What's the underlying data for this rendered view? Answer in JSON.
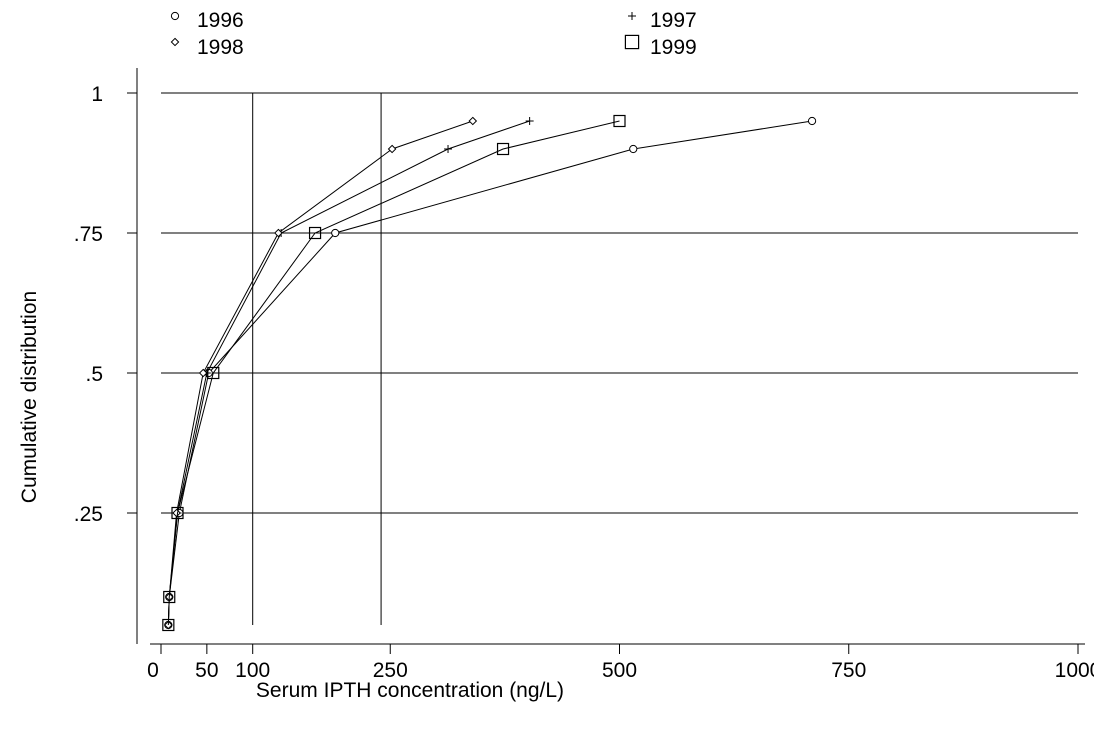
{
  "chart_data": {
    "type": "line",
    "title": "",
    "xlabel": "Serum IPTH concentration (ng/L)",
    "ylabel": "Cumulative distribution",
    "xlim": [
      0,
      1000
    ],
    "ylim": [
      0.05,
      1
    ],
    "x_ticks": [
      {
        "value": 0,
        "label": "0"
      },
      {
        "value": 50,
        "label": "50"
      },
      {
        "value": 100,
        "label": "100"
      },
      {
        "value": 250,
        "label": "250"
      },
      {
        "value": 500,
        "label": "500"
      },
      {
        "value": 750,
        "label": "750"
      },
      {
        "value": 1000,
        "label": "1000"
      }
    ],
    "y_ticks": [
      {
        "value": 0.25,
        "label": ".25"
      },
      {
        "value": 0.5,
        "label": ".5"
      },
      {
        "value": 0.75,
        "label": ".75"
      },
      {
        "value": 1,
        "label": "1"
      }
    ],
    "reference_lines": {
      "vertical": [
        100,
        240
      ],
      "horizontal": [
        0.25,
        0.5,
        0.75,
        1
      ]
    },
    "legend": {
      "placement": "top"
    },
    "series": [
      {
        "name": "1996",
        "marker": "circle",
        "x": [
          8,
          9,
          20,
          52,
          190,
          515,
          710
        ],
        "y": [
          0.05,
          0.1,
          0.25,
          0.5,
          0.75,
          0.9,
          0.95
        ]
      },
      {
        "name": "1997",
        "marker": "plus",
        "x": [
          8,
          9,
          18,
          50,
          131,
          313,
          402
        ],
        "y": [
          0.05,
          0.1,
          0.25,
          0.5,
          0.75,
          0.9,
          0.95
        ]
      },
      {
        "name": "1998",
        "marker": "diamond",
        "x": [
          8,
          9,
          17,
          46,
          128,
          252,
          340
        ],
        "y": [
          0.05,
          0.1,
          0.25,
          0.5,
          0.75,
          0.9,
          0.95
        ]
      },
      {
        "name": "1999",
        "marker": "square",
        "x": [
          8,
          9,
          18,
          57,
          168,
          373,
          500
        ],
        "y": [
          0.05,
          0.1,
          0.25,
          0.5,
          0.75,
          0.9,
          0.95
        ]
      }
    ]
  }
}
